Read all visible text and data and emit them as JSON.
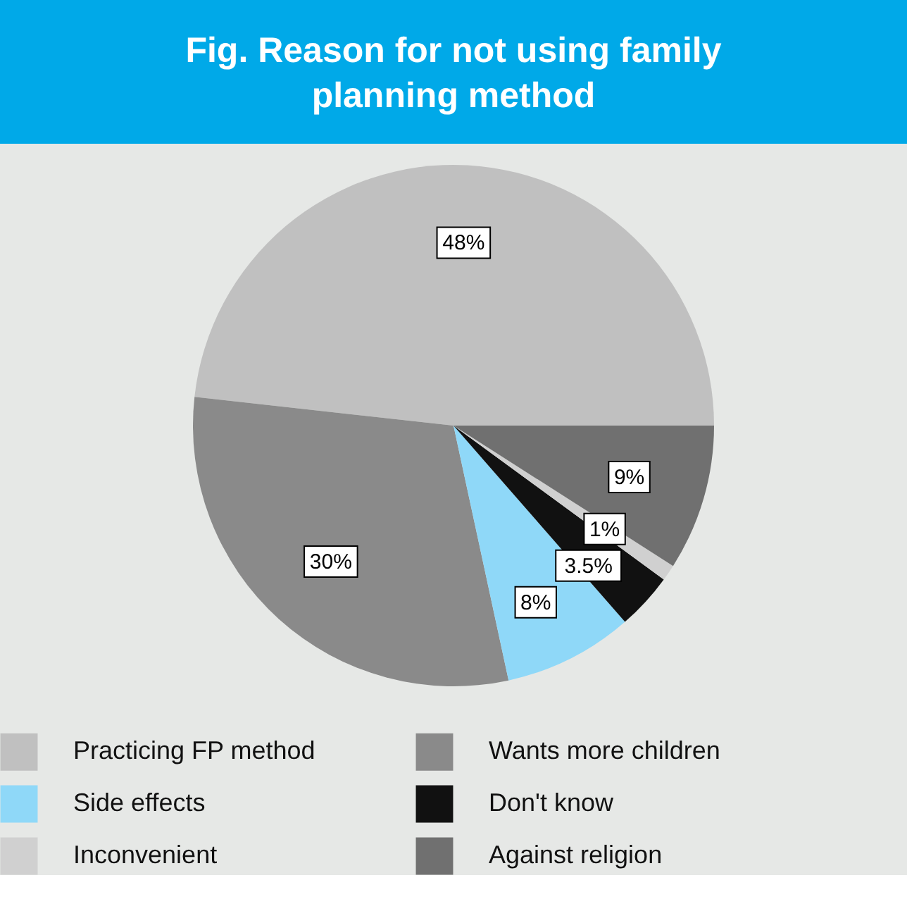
{
  "chart_data": {
    "type": "pie",
    "title": "Fig. Reason for not using family planning method",
    "categories": [
      "Practicing FP method",
      "Wants more children",
      "Side effects",
      "Don't know",
      "Inconvenient",
      "Against religion"
    ],
    "values": [
      48,
      30,
      8,
      3.5,
      1,
      9
    ],
    "value_labels": [
      "48%",
      "30%",
      "8%",
      "3.5%",
      "1%",
      "9%"
    ],
    "colors": [
      "#c0c0c0",
      "#8a8a8a",
      "#8fd8f8",
      "#111111",
      "#d0d0d0",
      "#707070"
    ],
    "legend": "bottom"
  }
}
